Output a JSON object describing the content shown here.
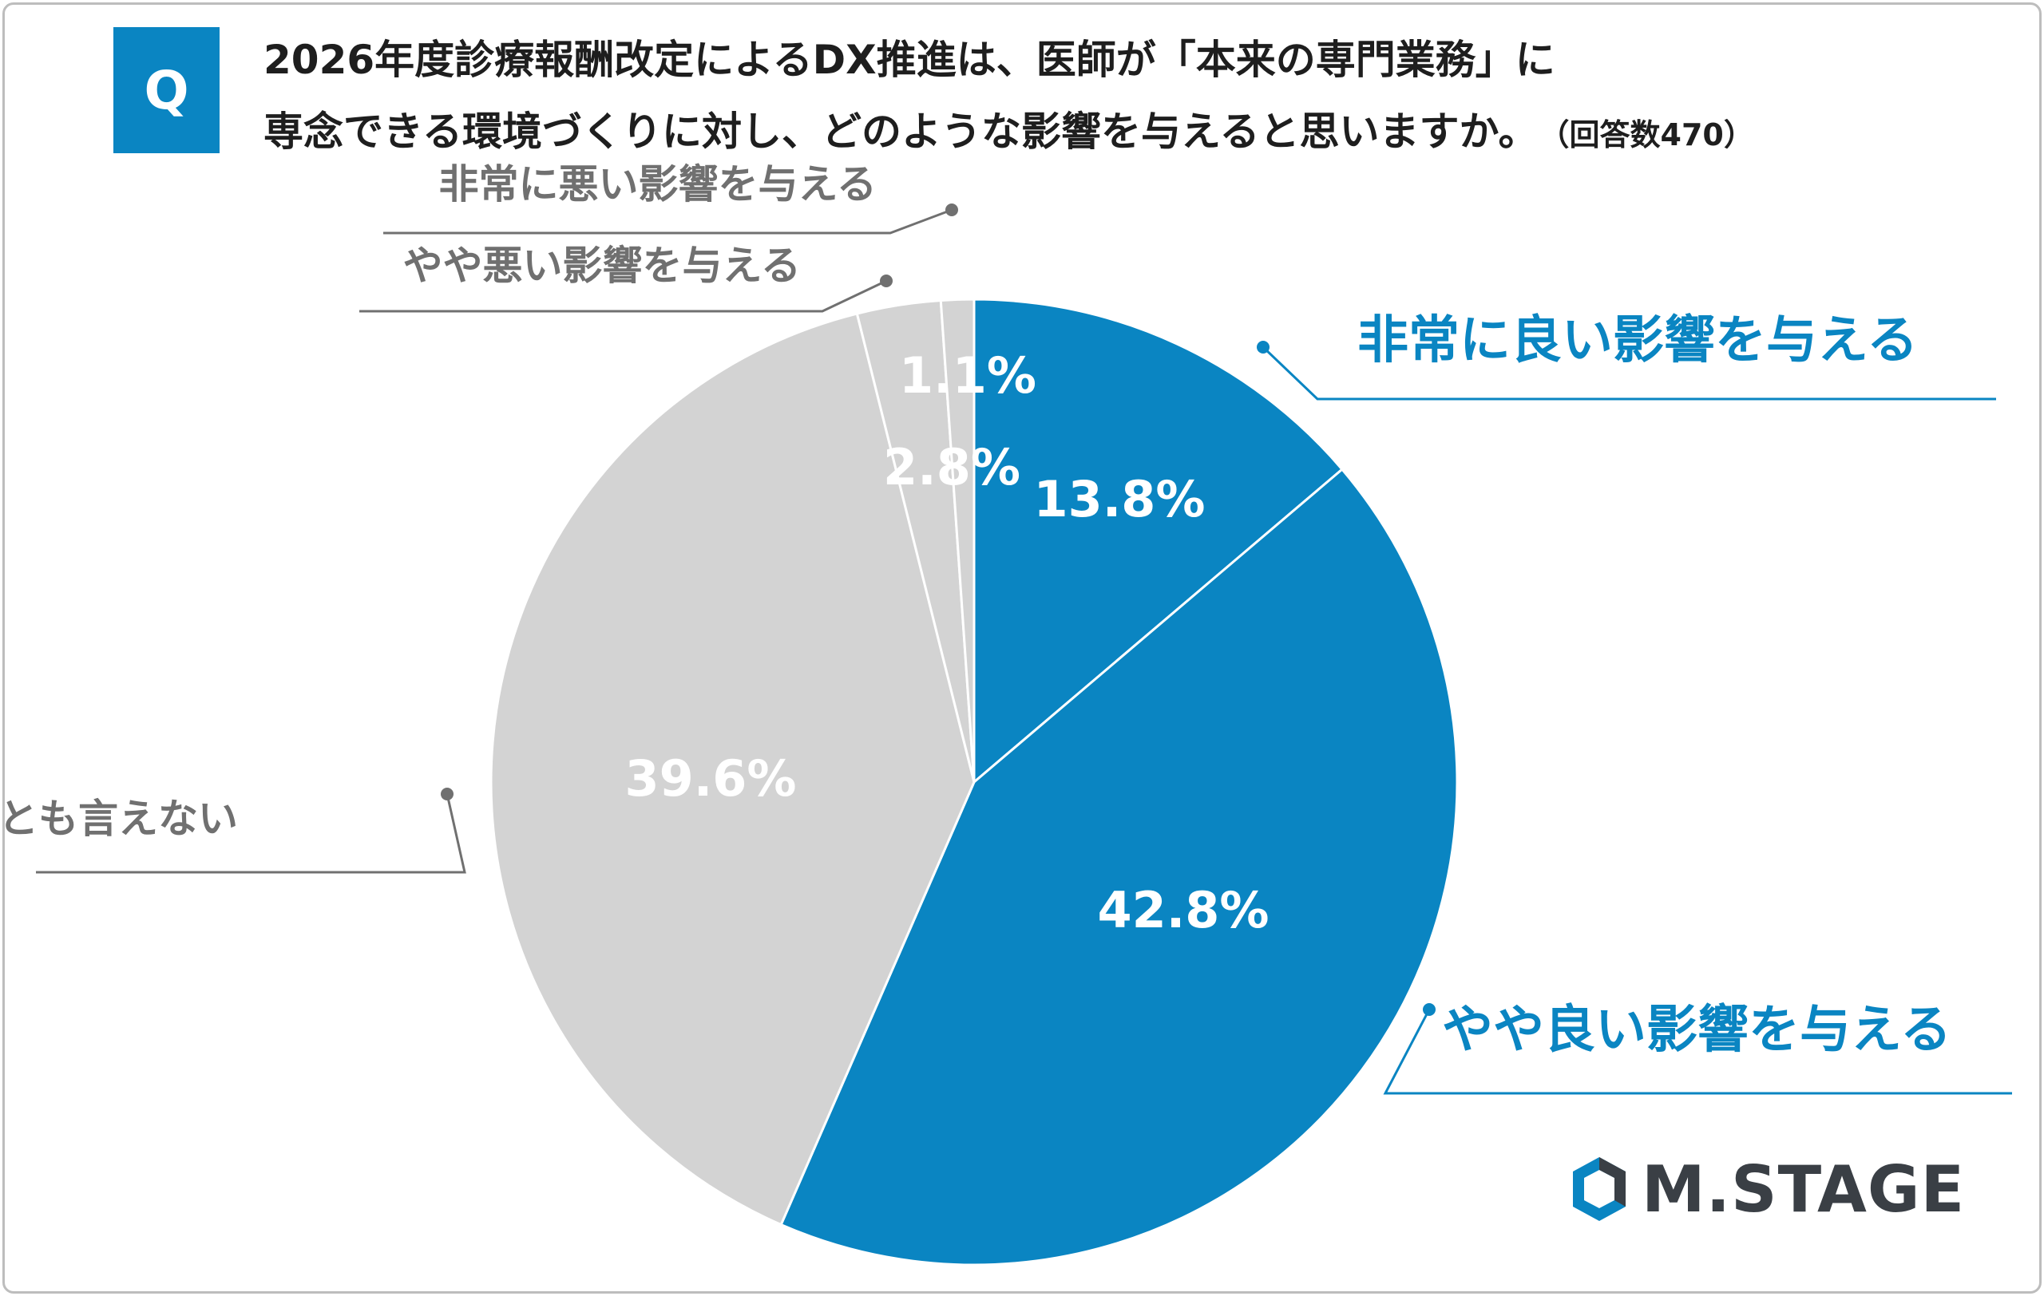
{
  "badge": "Q",
  "title": {
    "line1": "2026年度診療報酬改定によるDX推進は、医師が「本来の専門業務」に",
    "line2": "専念できる環境づくりに対し、どのような影響を与えると思いますか。",
    "count": "（回答数470）"
  },
  "chart_data": {
    "type": "pie",
    "start_angle_deg": 0,
    "direction": "clockwise",
    "slices": [
      {
        "label": "非常に良い影響を与える",
        "value": 13.8,
        "display": "13.8%",
        "color": "#0a85c2",
        "label_color": "#0a85c2"
      },
      {
        "label": "やや良い影響を与える",
        "value": 42.8,
        "display": "42.8%",
        "color": "#0a85c2",
        "label_color": "#0a85c2"
      },
      {
        "label": "どちらとも言えない",
        "value": 39.6,
        "display": "39.6%",
        "color": "#d3d3d3",
        "label_color": "#707070"
      },
      {
        "label": "やや悪い影響を与える",
        "value": 2.8,
        "display": "2.8%",
        "color": "#d3d3d3",
        "label_color": "#707070"
      },
      {
        "label": "非常に悪い影響を与える",
        "value": 1.1,
        "display": "1.1%",
        "color": "#d3d3d3",
        "label_color": "#707070"
      }
    ]
  },
  "logo": {
    "text": "M.STAGE",
    "colors": [
      "#0a85c2",
      "#3a3f45"
    ]
  }
}
